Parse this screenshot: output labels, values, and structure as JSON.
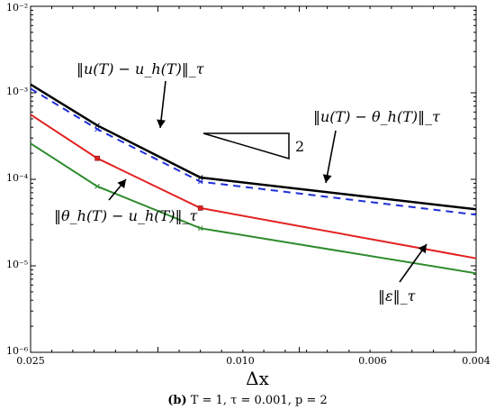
{
  "chart_data": {
    "type": "line",
    "x_axis": {
      "label": "Δx",
      "scale": "reciprocal",
      "range": [
        0.025,
        0.004
      ],
      "tick_values": [
        0.025,
        0.01,
        0.006,
        0.004
      ],
      "tick_labels": [
        "0.025",
        "0.010",
        "0.006",
        "0.004"
      ]
    },
    "y_axis": {
      "label": "",
      "scale": "log",
      "range": [
        1e-06,
        0.01
      ],
      "tick_values": [
        1e-06,
        1e-05,
        0.0001,
        0.001,
        0.01
      ],
      "tick_labels": [
        "10⁻⁶",
        "10⁻⁵",
        "10⁻⁴",
        "10⁻³",
        "10⁻²"
      ]
    },
    "grid": false,
    "series": [
      {
        "name": "‖u(T) − u_h(T)‖_τ",
        "color": "#000000",
        "style": "solid",
        "x": [
          0.025,
          0.014,
          0.00833,
          0.004
        ],
        "y": [
          0.00125,
          0.00042,
          0.000105,
          4.5e-05
        ]
      },
      {
        "name": "‖u(T) − θ_h(T)‖_τ",
        "color": "#1f2fd6",
        "style": "dashed",
        "x": [
          0.025,
          0.014,
          0.00833,
          0.004
        ],
        "y": [
          0.00112,
          0.00038,
          9.4e-05,
          3.9e-05
        ]
      },
      {
        "name": "‖θ_h(T) − u_h(T)‖_τ",
        "color": "#e32121",
        "style": "solid",
        "x": [
          0.025,
          0.014,
          0.00833,
          0.004
        ],
        "y": [
          0.00056,
          0.000175,
          4.65e-05,
          1.22e-05
        ]
      },
      {
        "name": "‖ε‖_τ",
        "color": "#2e8b2e",
        "style": "solid",
        "x": [
          0.025,
          0.014,
          0.00833,
          0.004
        ],
        "y": [
          0.00026,
          8.3e-05,
          2.72e-05,
          8.2e-06
        ]
      }
    ],
    "slope_triangle_label": "2",
    "annotations": [
      {
        "text": "‖u(T) − u_h(T)‖_τ",
        "target_series": 0
      },
      {
        "text": "‖u(T) − θ_h(T)‖_τ",
        "target_series": 1
      },
      {
        "text": "‖θ_h(T) − u_h(T)‖_τ",
        "target_series": 2
      },
      {
        "text": "‖ε‖_τ",
        "target_series": 3
      }
    ]
  },
  "caption": {
    "tag": "(b)",
    "text": "T = 1, τ = 0.001, p = 2"
  }
}
